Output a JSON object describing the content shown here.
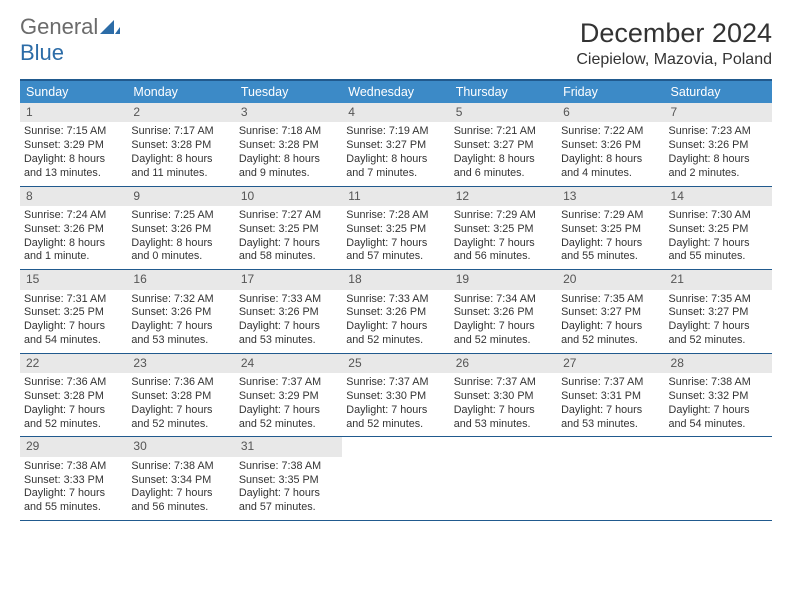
{
  "logo": {
    "word1": "General",
    "word2": "Blue",
    "color1": "#6b6b6b",
    "color2": "#2c6ca7"
  },
  "title": "December 2024",
  "location": "Ciepielow, Mazovia, Poland",
  "colors": {
    "header_bg": "#3c8ac7",
    "header_border": "#215a8e",
    "daynum_bg": "#e8e8e8",
    "text": "#333333"
  },
  "weekdays": [
    "Sunday",
    "Monday",
    "Tuesday",
    "Wednesday",
    "Thursday",
    "Friday",
    "Saturday"
  ],
  "weeks": [
    [
      {
        "n": "1",
        "sunrise": "Sunrise: 7:15 AM",
        "sunset": "Sunset: 3:29 PM",
        "day": "Daylight: 8 hours and 13 minutes."
      },
      {
        "n": "2",
        "sunrise": "Sunrise: 7:17 AM",
        "sunset": "Sunset: 3:28 PM",
        "day": "Daylight: 8 hours and 11 minutes."
      },
      {
        "n": "3",
        "sunrise": "Sunrise: 7:18 AM",
        "sunset": "Sunset: 3:28 PM",
        "day": "Daylight: 8 hours and 9 minutes."
      },
      {
        "n": "4",
        "sunrise": "Sunrise: 7:19 AM",
        "sunset": "Sunset: 3:27 PM",
        "day": "Daylight: 8 hours and 7 minutes."
      },
      {
        "n": "5",
        "sunrise": "Sunrise: 7:21 AM",
        "sunset": "Sunset: 3:27 PM",
        "day": "Daylight: 8 hours and 6 minutes."
      },
      {
        "n": "6",
        "sunrise": "Sunrise: 7:22 AM",
        "sunset": "Sunset: 3:26 PM",
        "day": "Daylight: 8 hours and 4 minutes."
      },
      {
        "n": "7",
        "sunrise": "Sunrise: 7:23 AM",
        "sunset": "Sunset: 3:26 PM",
        "day": "Daylight: 8 hours and 2 minutes."
      }
    ],
    [
      {
        "n": "8",
        "sunrise": "Sunrise: 7:24 AM",
        "sunset": "Sunset: 3:26 PM",
        "day": "Daylight: 8 hours and 1 minute."
      },
      {
        "n": "9",
        "sunrise": "Sunrise: 7:25 AM",
        "sunset": "Sunset: 3:26 PM",
        "day": "Daylight: 8 hours and 0 minutes."
      },
      {
        "n": "10",
        "sunrise": "Sunrise: 7:27 AM",
        "sunset": "Sunset: 3:25 PM",
        "day": "Daylight: 7 hours and 58 minutes."
      },
      {
        "n": "11",
        "sunrise": "Sunrise: 7:28 AM",
        "sunset": "Sunset: 3:25 PM",
        "day": "Daylight: 7 hours and 57 minutes."
      },
      {
        "n": "12",
        "sunrise": "Sunrise: 7:29 AM",
        "sunset": "Sunset: 3:25 PM",
        "day": "Daylight: 7 hours and 56 minutes."
      },
      {
        "n": "13",
        "sunrise": "Sunrise: 7:29 AM",
        "sunset": "Sunset: 3:25 PM",
        "day": "Daylight: 7 hours and 55 minutes."
      },
      {
        "n": "14",
        "sunrise": "Sunrise: 7:30 AM",
        "sunset": "Sunset: 3:25 PM",
        "day": "Daylight: 7 hours and 55 minutes."
      }
    ],
    [
      {
        "n": "15",
        "sunrise": "Sunrise: 7:31 AM",
        "sunset": "Sunset: 3:25 PM",
        "day": "Daylight: 7 hours and 54 minutes."
      },
      {
        "n": "16",
        "sunrise": "Sunrise: 7:32 AM",
        "sunset": "Sunset: 3:26 PM",
        "day": "Daylight: 7 hours and 53 minutes."
      },
      {
        "n": "17",
        "sunrise": "Sunrise: 7:33 AM",
        "sunset": "Sunset: 3:26 PM",
        "day": "Daylight: 7 hours and 53 minutes."
      },
      {
        "n": "18",
        "sunrise": "Sunrise: 7:33 AM",
        "sunset": "Sunset: 3:26 PM",
        "day": "Daylight: 7 hours and 52 minutes."
      },
      {
        "n": "19",
        "sunrise": "Sunrise: 7:34 AM",
        "sunset": "Sunset: 3:26 PM",
        "day": "Daylight: 7 hours and 52 minutes."
      },
      {
        "n": "20",
        "sunrise": "Sunrise: 7:35 AM",
        "sunset": "Sunset: 3:27 PM",
        "day": "Daylight: 7 hours and 52 minutes."
      },
      {
        "n": "21",
        "sunrise": "Sunrise: 7:35 AM",
        "sunset": "Sunset: 3:27 PM",
        "day": "Daylight: 7 hours and 52 minutes."
      }
    ],
    [
      {
        "n": "22",
        "sunrise": "Sunrise: 7:36 AM",
        "sunset": "Sunset: 3:28 PM",
        "day": "Daylight: 7 hours and 52 minutes."
      },
      {
        "n": "23",
        "sunrise": "Sunrise: 7:36 AM",
        "sunset": "Sunset: 3:28 PM",
        "day": "Daylight: 7 hours and 52 minutes."
      },
      {
        "n": "24",
        "sunrise": "Sunrise: 7:37 AM",
        "sunset": "Sunset: 3:29 PM",
        "day": "Daylight: 7 hours and 52 minutes."
      },
      {
        "n": "25",
        "sunrise": "Sunrise: 7:37 AM",
        "sunset": "Sunset: 3:30 PM",
        "day": "Daylight: 7 hours and 52 minutes."
      },
      {
        "n": "26",
        "sunrise": "Sunrise: 7:37 AM",
        "sunset": "Sunset: 3:30 PM",
        "day": "Daylight: 7 hours and 53 minutes."
      },
      {
        "n": "27",
        "sunrise": "Sunrise: 7:37 AM",
        "sunset": "Sunset: 3:31 PM",
        "day": "Daylight: 7 hours and 53 minutes."
      },
      {
        "n": "28",
        "sunrise": "Sunrise: 7:38 AM",
        "sunset": "Sunset: 3:32 PM",
        "day": "Daylight: 7 hours and 54 minutes."
      }
    ],
    [
      {
        "n": "29",
        "sunrise": "Sunrise: 7:38 AM",
        "sunset": "Sunset: 3:33 PM",
        "day": "Daylight: 7 hours and 55 minutes."
      },
      {
        "n": "30",
        "sunrise": "Sunrise: 7:38 AM",
        "sunset": "Sunset: 3:34 PM",
        "day": "Daylight: 7 hours and 56 minutes."
      },
      {
        "n": "31",
        "sunrise": "Sunrise: 7:38 AM",
        "sunset": "Sunset: 3:35 PM",
        "day": "Daylight: 7 hours and 57 minutes."
      },
      null,
      null,
      null,
      null
    ]
  ]
}
